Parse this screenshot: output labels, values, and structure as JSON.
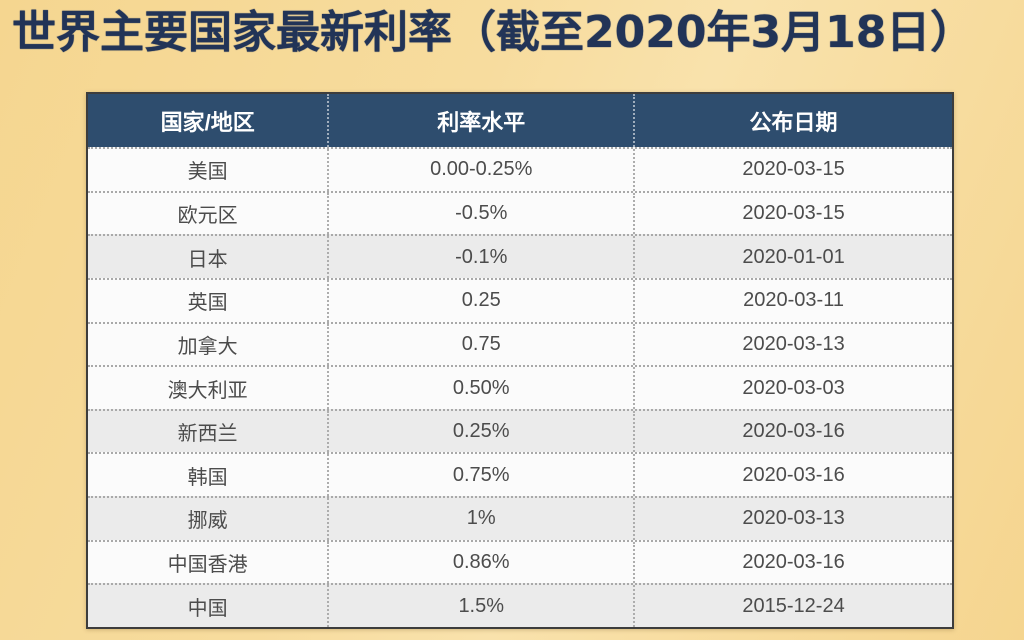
{
  "title": "世界主要国家最新利率（截至2020年3月18日）",
  "chart_data": {
    "type": "table",
    "title": "世界主要国家最新利率（截至2020年3月18日）",
    "columns": [
      "国家/地区",
      "利率水平",
      "公布日期"
    ],
    "rows": [
      {
        "country": "美国",
        "rate": "0.00-0.25%",
        "date": "2020-03-15"
      },
      {
        "country": "欧元区",
        "rate": "-0.5%",
        "date": "2020-03-15"
      },
      {
        "country": "日本",
        "rate": "-0.1%",
        "date": "2020-01-01"
      },
      {
        "country": "英国",
        "rate": "0.25",
        "date": "2020-03-11"
      },
      {
        "country": "加拿大",
        "rate": "0.75",
        "date": "2020-03-13"
      },
      {
        "country": "澳大利亚",
        "rate": "0.50%",
        "date": "2020-03-03"
      },
      {
        "country": "新西兰",
        "rate": "0.25%",
        "date": "2020-03-16"
      },
      {
        "country": "韩国",
        "rate": "0.75%",
        "date": "2020-03-16"
      },
      {
        "country": "挪威",
        "rate": "1%",
        "date": "2020-03-13"
      },
      {
        "country": "中国香港",
        "rate": "0.86%",
        "date": "2020-03-16"
      },
      {
        "country": "中国",
        "rate": "1.5%",
        "date": "2015-12-24"
      }
    ]
  },
  "colors": {
    "background_yellow": "#f6d996",
    "title_navy": "#223457",
    "header_bg": "#2e4d6e",
    "header_text": "#ffffff",
    "body_text": "#4c4c4c",
    "row_alt_gray": "#ebebeb",
    "dotted_line": "#adadad",
    "table_border": "#3d3d3d"
  }
}
